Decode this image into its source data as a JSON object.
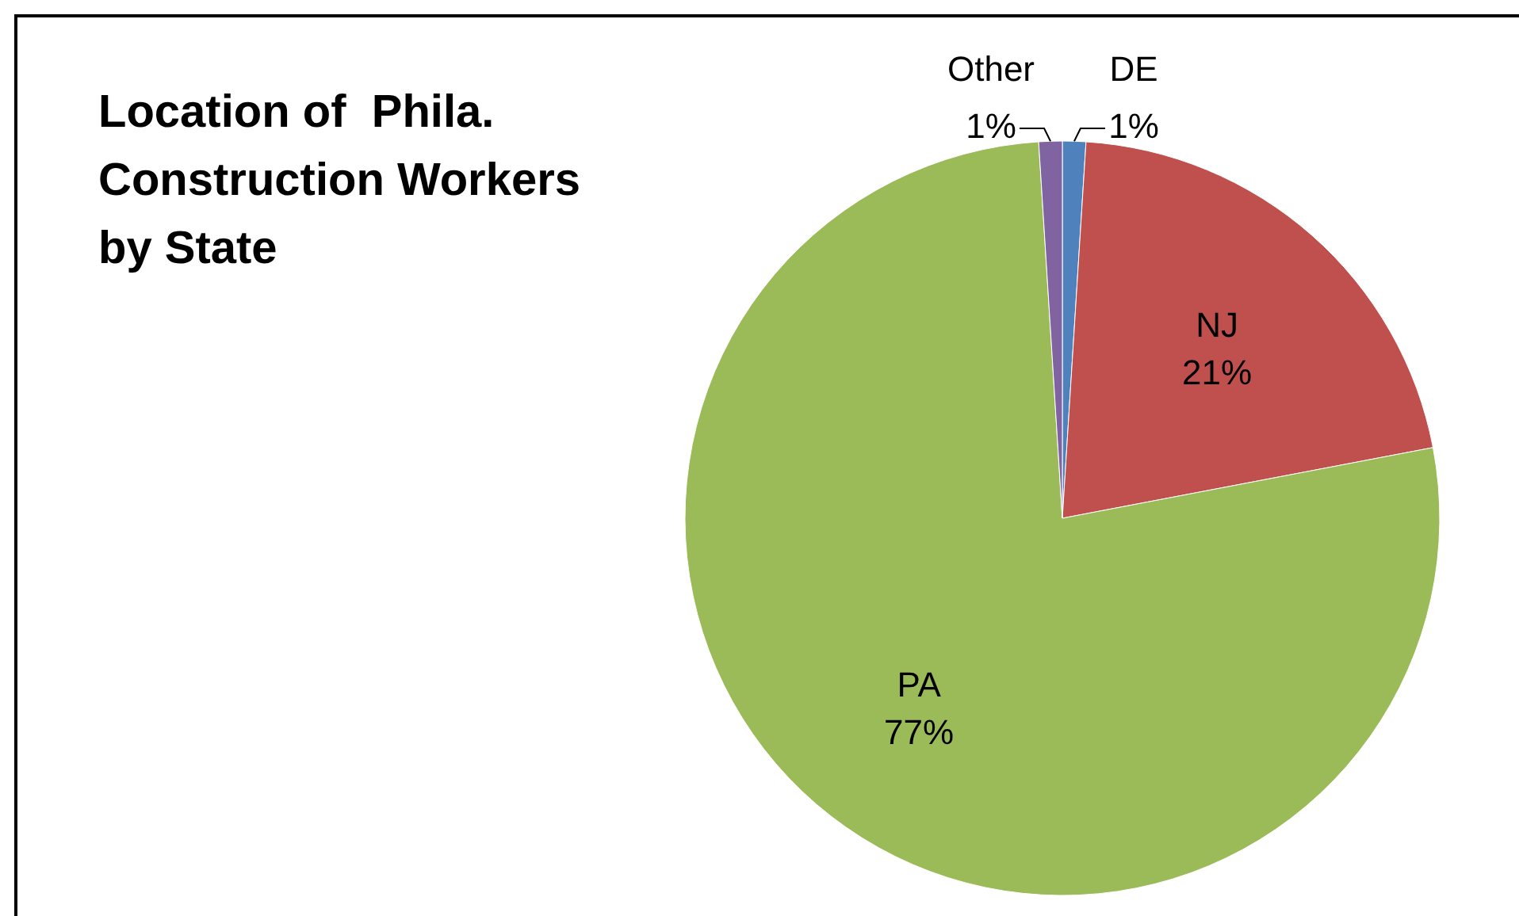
{
  "chart_data": {
    "type": "pie",
    "title": "Location of  Phila. Construction Workers by State",
    "categories": [
      "DE",
      "NJ",
      "PA",
      "Other"
    ],
    "values": [
      1,
      21,
      77,
      1
    ],
    "value_labels": [
      "1%",
      "21%",
      "77%",
      "1%"
    ],
    "colors": [
      "#4f81bd",
      "#c0504d",
      "#9bbb59",
      "#8064a2"
    ],
    "legend": false
  }
}
